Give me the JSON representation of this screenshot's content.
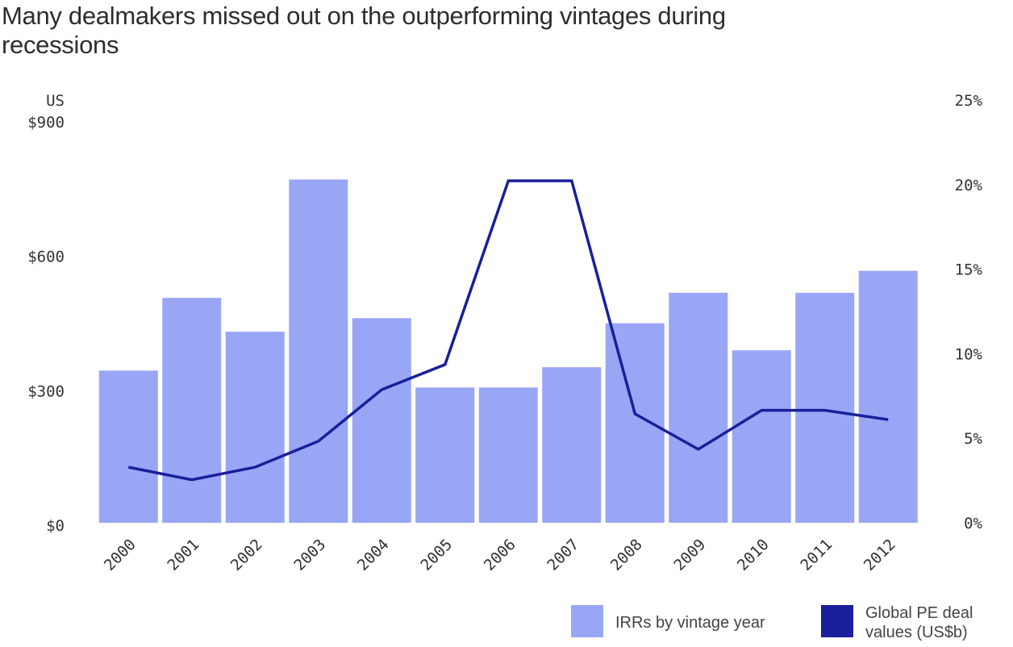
{
  "title": "Many dealmakers missed out on the outperforming vintages during recessions",
  "colors": {
    "bar": "#99a6f5",
    "line": "#1a1f9b",
    "text": "#333333"
  },
  "chart_data": {
    "type": "bar",
    "title": "Many dealmakers missed out on the outperforming vintages during recessions",
    "categories": [
      "2000",
      "2001",
      "2002",
      "2003",
      "2004",
      "2005",
      "2006",
      "2007",
      "2008",
      "2009",
      "2010",
      "2011",
      "2012"
    ],
    "left_axis": {
      "unit_label": "US",
      "ticks": [
        "$900",
        "$600",
        "$300",
        "$0"
      ],
      "ylim": [
        0,
        900
      ]
    },
    "right_axis": {
      "ticks": [
        "25%",
        "20%",
        "15%",
        "10%",
        "5%",
        "0%"
      ],
      "ylim": [
        0,
        25
      ]
    },
    "series": [
      {
        "name": "IRRs by vintage year",
        "type": "bar",
        "axis": "right",
        "values": [
          9.0,
          13.3,
          11.3,
          20.3,
          12.1,
          8.0,
          8.0,
          9.2,
          11.8,
          13.6,
          10.2,
          13.6,
          14.9
        ]
      },
      {
        "name": "Global PE deal values (US$b)",
        "type": "line",
        "axis": "left",
        "values": [
          124,
          96,
          124,
          182,
          297,
          353,
          763,
          763,
          243,
          164,
          251,
          251,
          230
        ]
      }
    ],
    "legend_position": "bottom-right",
    "grid": false
  }
}
